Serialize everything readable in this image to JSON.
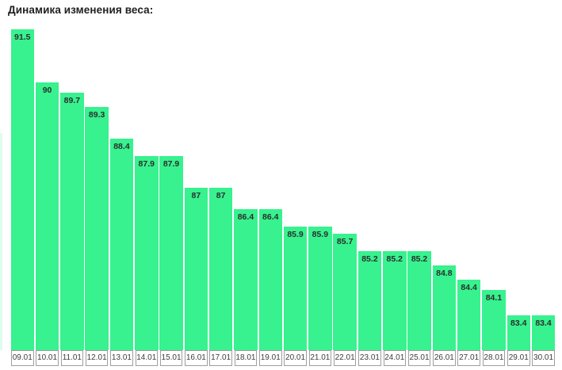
{
  "chart_data": {
    "type": "bar",
    "title": "Динамика изменения веса:",
    "categories": [
      "09.01",
      "10.01",
      "11.01",
      "12.01",
      "13.01",
      "14.01",
      "15.01",
      "16.01",
      "17.01",
      "18.01",
      "19.01",
      "20.01",
      "21.01",
      "22.01",
      "23.01",
      "24.01",
      "25.01",
      "26.01",
      "27.01",
      "28.01",
      "29.01",
      "30.01"
    ],
    "values": [
      91.5,
      90,
      89.7,
      89.3,
      88.4,
      87.9,
      87.9,
      87,
      87,
      86.4,
      86.4,
      85.9,
      85.9,
      85.7,
      85.2,
      85.2,
      85.2,
      84.8,
      84.4,
      84.1,
      83.4,
      83.4
    ],
    "xlabel": "",
    "ylabel": "",
    "ylim": [
      82.4,
      91.6
    ],
    "grid": false,
    "legend": false,
    "value_labels_shown": true,
    "colors": {
      "bar_fill": "#37f28e",
      "bar_fill_faint": "rgba(55,242,142,0.16)",
      "value_label": "#2d2d2d",
      "axis_box_border": "#9e9e9e",
      "axis_label": "#3d3d3d",
      "title": "#1f1f1f",
      "background": "#ffffff"
    }
  }
}
